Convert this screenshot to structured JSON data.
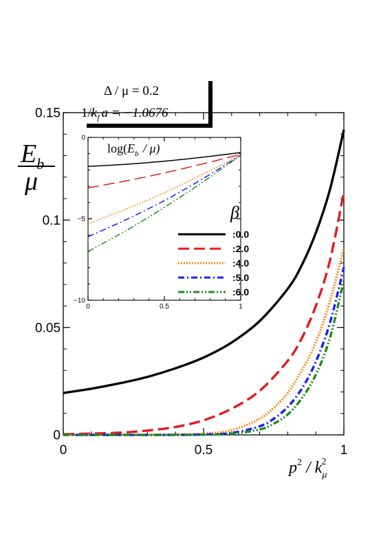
{
  "params": {
    "delta": "Δ / μ = 0.2",
    "kfa_prefix": "1/",
    "kfa_k": "k",
    "kfa_sub": "f",
    "kfa_suffix": "a = −1.0676"
  },
  "ylabel": {
    "top": "E",
    "sub": "b",
    "bottom": "μ"
  },
  "xlabel": {
    "p": "p",
    "sup1": "2",
    "slash": " / k",
    "sub": "μ",
    "sup2": "2"
  },
  "inset_label": {
    "prefix": "log(",
    "e": "E",
    "sub": "b",
    "suffix": " / μ)"
  },
  "legend_title": "β",
  "colors": {
    "b0": "#000000",
    "b2": "#e41a1c",
    "b4": "#ff8c1a",
    "b5": "#1a1aff",
    "b6": "#1e8c1e"
  },
  "chart_data": [
    {
      "type": "line",
      "xlim": [
        0,
        1
      ],
      "ylim": [
        0,
        0.15
      ],
      "x_ticks": [
        "0",
        "0.5",
        "1"
      ],
      "y_ticks": [
        "0",
        "0.05",
        "0.1",
        "0.15"
      ],
      "series": [
        {
          "name": ":0.0",
          "color": "#000000",
          "dash": "solid",
          "x": [
            0,
            0.1,
            0.2,
            0.3,
            0.4,
            0.5,
            0.6,
            0.7,
            0.8,
            0.85,
            0.9,
            0.95,
            1.0
          ],
          "y": [
            0.0195,
            0.0215,
            0.024,
            0.027,
            0.031,
            0.036,
            0.043,
            0.053,
            0.068,
            0.079,
            0.094,
            0.114,
            0.142
          ]
        },
        {
          "name": ":2.0",
          "color": "#e41a1c",
          "dash": "long-dash",
          "x": [
            0,
            0.1,
            0.2,
            0.3,
            0.4,
            0.5,
            0.6,
            0.7,
            0.8,
            0.85,
            0.9,
            0.95,
            1.0
          ],
          "y": [
            0.0003,
            0.0006,
            0.001,
            0.002,
            0.0037,
            0.0068,
            0.0122,
            0.0205,
            0.0345,
            0.045,
            0.06,
            0.081,
            0.113
          ]
        },
        {
          "name": ":4.0",
          "color": "#ff8c1a",
          "dash": "dotted",
          "x": [
            0,
            0.2,
            0.4,
            0.5,
            0.6,
            0.7,
            0.75,
            0.8,
            0.85,
            0.9,
            0.95,
            1.0
          ],
          "y": [
            0.0,
            0.0,
            0.0002,
            0.0006,
            0.0022,
            0.0075,
            0.0125,
            0.0195,
            0.03,
            0.043,
            0.062,
            0.087
          ]
        },
        {
          "name": ":5.0",
          "color": "#1a1aff",
          "dash": "dash-dot",
          "x": [
            0,
            0.2,
            0.4,
            0.5,
            0.6,
            0.7,
            0.75,
            0.8,
            0.85,
            0.9,
            0.95,
            1.0
          ],
          "y": [
            0.0,
            0.0,
            0.0,
            0.0002,
            0.0009,
            0.004,
            0.0075,
            0.013,
            0.0215,
            0.034,
            0.052,
            0.078
          ]
        },
        {
          "name": ":6.0",
          "color": "#1e8c1e",
          "dash": "dash-dot-dot",
          "x": [
            0,
            0.2,
            0.4,
            0.5,
            0.6,
            0.7,
            0.75,
            0.8,
            0.85,
            0.9,
            0.95,
            1.0
          ],
          "y": [
            0.0,
            0.0,
            0.0,
            0.0001,
            0.0005,
            0.0025,
            0.0052,
            0.0095,
            0.017,
            0.028,
            0.045,
            0.072
          ]
        }
      ]
    },
    {
      "type": "line",
      "xlim": [
        0,
        1
      ],
      "ylim": [
        -10,
        0
      ],
      "x_ticks": [
        "0",
        "0.5",
        "1"
      ],
      "y_ticks": [
        "0",
        "−5",
        "−10"
      ],
      "series": [
        {
          "name": ":0.0",
          "color": "#000000",
          "dash": "solid",
          "x": [
            0,
            0.25,
            0.5,
            0.75,
            1.0
          ],
          "y": [
            -1.78,
            -1.65,
            -1.46,
            -1.22,
            -0.93
          ]
        },
        {
          "name": ":2.0",
          "color": "#e41a1c",
          "dash": "long-dash",
          "x": [
            0,
            0.25,
            0.5,
            0.75,
            1.0
          ],
          "y": [
            -3.1,
            -2.67,
            -2.18,
            -1.63,
            -1.04
          ]
        },
        {
          "name": ":4.0",
          "color": "#ff8c1a",
          "dash": "dotted",
          "x": [
            0,
            0.25,
            0.5,
            0.75,
            1.0
          ],
          "y": [
            -5.3,
            -4.4,
            -3.4,
            -2.27,
            -1.08
          ]
        },
        {
          "name": ":5.0",
          "color": "#1a1aff",
          "dash": "dash-dot",
          "x": [
            0,
            0.25,
            0.5,
            0.75,
            1.0
          ],
          "y": [
            -6.1,
            -5.05,
            -3.88,
            -2.55,
            -1.09
          ]
        },
        {
          "name": ":6.0",
          "color": "#1e8c1e",
          "dash": "dash-dot-dot",
          "x": [
            0,
            0.25,
            0.5,
            0.75,
            1.0
          ],
          "y": [
            -7.0,
            -5.72,
            -4.3,
            -2.75,
            -1.1
          ]
        }
      ]
    }
  ]
}
